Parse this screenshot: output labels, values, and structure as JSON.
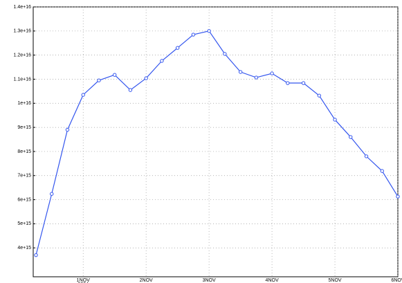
{
  "chart_data": {
    "type": "line",
    "categories": [
      null,
      null,
      null,
      "1NOV",
      null,
      null,
      null,
      "2NOV",
      null,
      null,
      null,
      "3NOV",
      null,
      null,
      null,
      "4NOV",
      null,
      null,
      null,
      "5NOV",
      null,
      null,
      null,
      "6NOV"
    ],
    "year_label": "2004",
    "series": [
      {
        "color": "#3355ee",
        "values": [
          3700000000000000,
          6240000000000000,
          8900000000000000,
          10350000000000000,
          10950000000000000,
          11180000000000000,
          10550000000000000,
          11040000000000000,
          11760000000000000,
          12300000000000000,
          12850000000000000,
          13000000000000000,
          12050000000000000,
          11300000000000000,
          11070000000000000,
          11240000000000000,
          10840000000000000,
          10840000000000000,
          10320000000000000,
          9320000000000000,
          8600000000000000,
          7800000000000000,
          7190000000000000,
          6130000000000000
        ]
      }
    ],
    "ylim": [
      2800000000000000,
      14000000000000000
    ],
    "yticks": [
      {
        "value": 4000000000000000,
        "label": "4e+15"
      },
      {
        "value": 5000000000000000,
        "label": "5e+15"
      },
      {
        "value": 6000000000000000,
        "label": "6e+15"
      },
      {
        "value": 7000000000000000,
        "label": "7e+15"
      },
      {
        "value": 8000000000000000,
        "label": "8e+15"
      },
      {
        "value": 9000000000000000,
        "label": "9e+15"
      },
      {
        "value": 10000000000000000,
        "label": "1e+16"
      },
      {
        "value": 11000000000000000,
        "label": "1.1e+16"
      },
      {
        "value": 12000000000000000,
        "label": "1.2e+16"
      },
      {
        "value": 13000000000000000,
        "label": "1.3e+16"
      },
      {
        "value": 14000000000000000,
        "label": "1.4e+16"
      }
    ],
    "grid": true
  }
}
